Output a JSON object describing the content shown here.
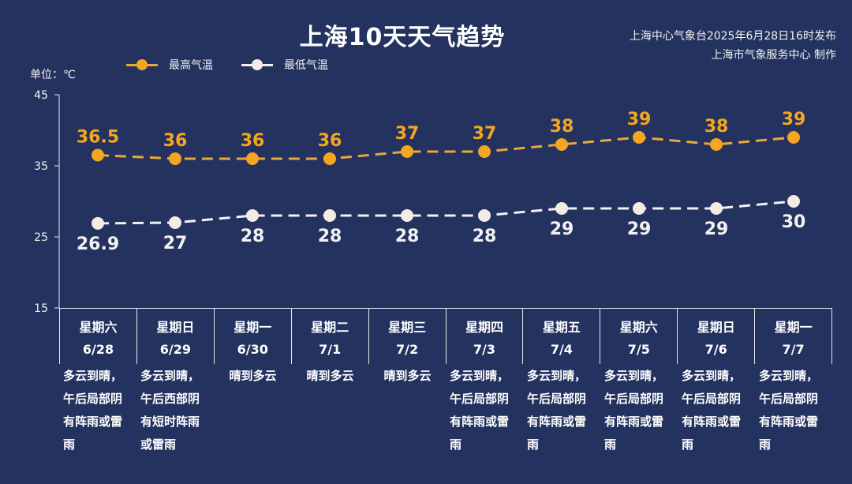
{
  "header": {
    "title": "上海10天天气趋势",
    "source_line1": "上海中心气象台2025年6月28日16时发布",
    "source_line2": "上海市气象服务中心 制作",
    "unit": "单位：℃"
  },
  "legend": [
    {
      "label": "最高气温",
      "color": "#f4a620"
    },
    {
      "label": "最低气温",
      "color": "#f3ece4"
    }
  ],
  "colors": {
    "background": "#24325f",
    "high": "#f4a620",
    "low": "#f3ece4",
    "axis": "#e8e8e8"
  },
  "days": [
    {
      "weekday": "星期六",
      "date": "6/28",
      "desc": "多云到晴，午后局部阴有阵雨或雷雨"
    },
    {
      "weekday": "星期日",
      "date": "6/29",
      "desc": "多云到晴，午后西部阴有短时阵雨或雷雨"
    },
    {
      "weekday": "星期一",
      "date": "6/30",
      "desc": "晴到多云"
    },
    {
      "weekday": "星期二",
      "date": "7/1",
      "desc": "晴到多云"
    },
    {
      "weekday": "星期三",
      "date": "7/2",
      "desc": "晴到多云"
    },
    {
      "weekday": "星期四",
      "date": "7/3",
      "desc": "多云到晴，午后局部阴有阵雨或雷雨"
    },
    {
      "weekday": "星期五",
      "date": "7/4",
      "desc": "多云到晴，午后局部阴有阵雨或雷雨"
    },
    {
      "weekday": "星期六",
      "date": "7/5",
      "desc": "多云到晴，午后局部阴有阵雨或雷雨"
    },
    {
      "weekday": "星期日",
      "date": "7/6",
      "desc": "多云到晴，午后局部阴有阵雨或雷雨"
    },
    {
      "weekday": "星期一",
      "date": "7/7",
      "desc": "多云到晴，午后局部阴有阵雨或雷雨"
    }
  ],
  "chart_data": {
    "type": "line",
    "title": "上海10天天气趋势",
    "xlabel": "",
    "ylabel": "单位：℃",
    "categories": [
      "6/28",
      "6/29",
      "6/30",
      "7/1",
      "7/2",
      "7/3",
      "7/4",
      "7/5",
      "7/6",
      "7/7"
    ],
    "series": [
      {
        "name": "最高气温",
        "values": [
          36.5,
          36,
          36,
          36,
          37,
          37,
          38,
          39,
          38,
          39
        ],
        "color": "#f4a620",
        "style": "dashed"
      },
      {
        "name": "最低气温",
        "values": [
          26.9,
          27,
          28,
          28,
          28,
          28,
          29,
          29,
          29,
          30
        ],
        "color": "#f3ece4",
        "style": "dashed"
      }
    ],
    "yticks": [
      15,
      25,
      35,
      45
    ],
    "ylim": [
      15,
      45
    ],
    "grid": false,
    "legend_position": "top-left",
    "data_labels": true
  }
}
